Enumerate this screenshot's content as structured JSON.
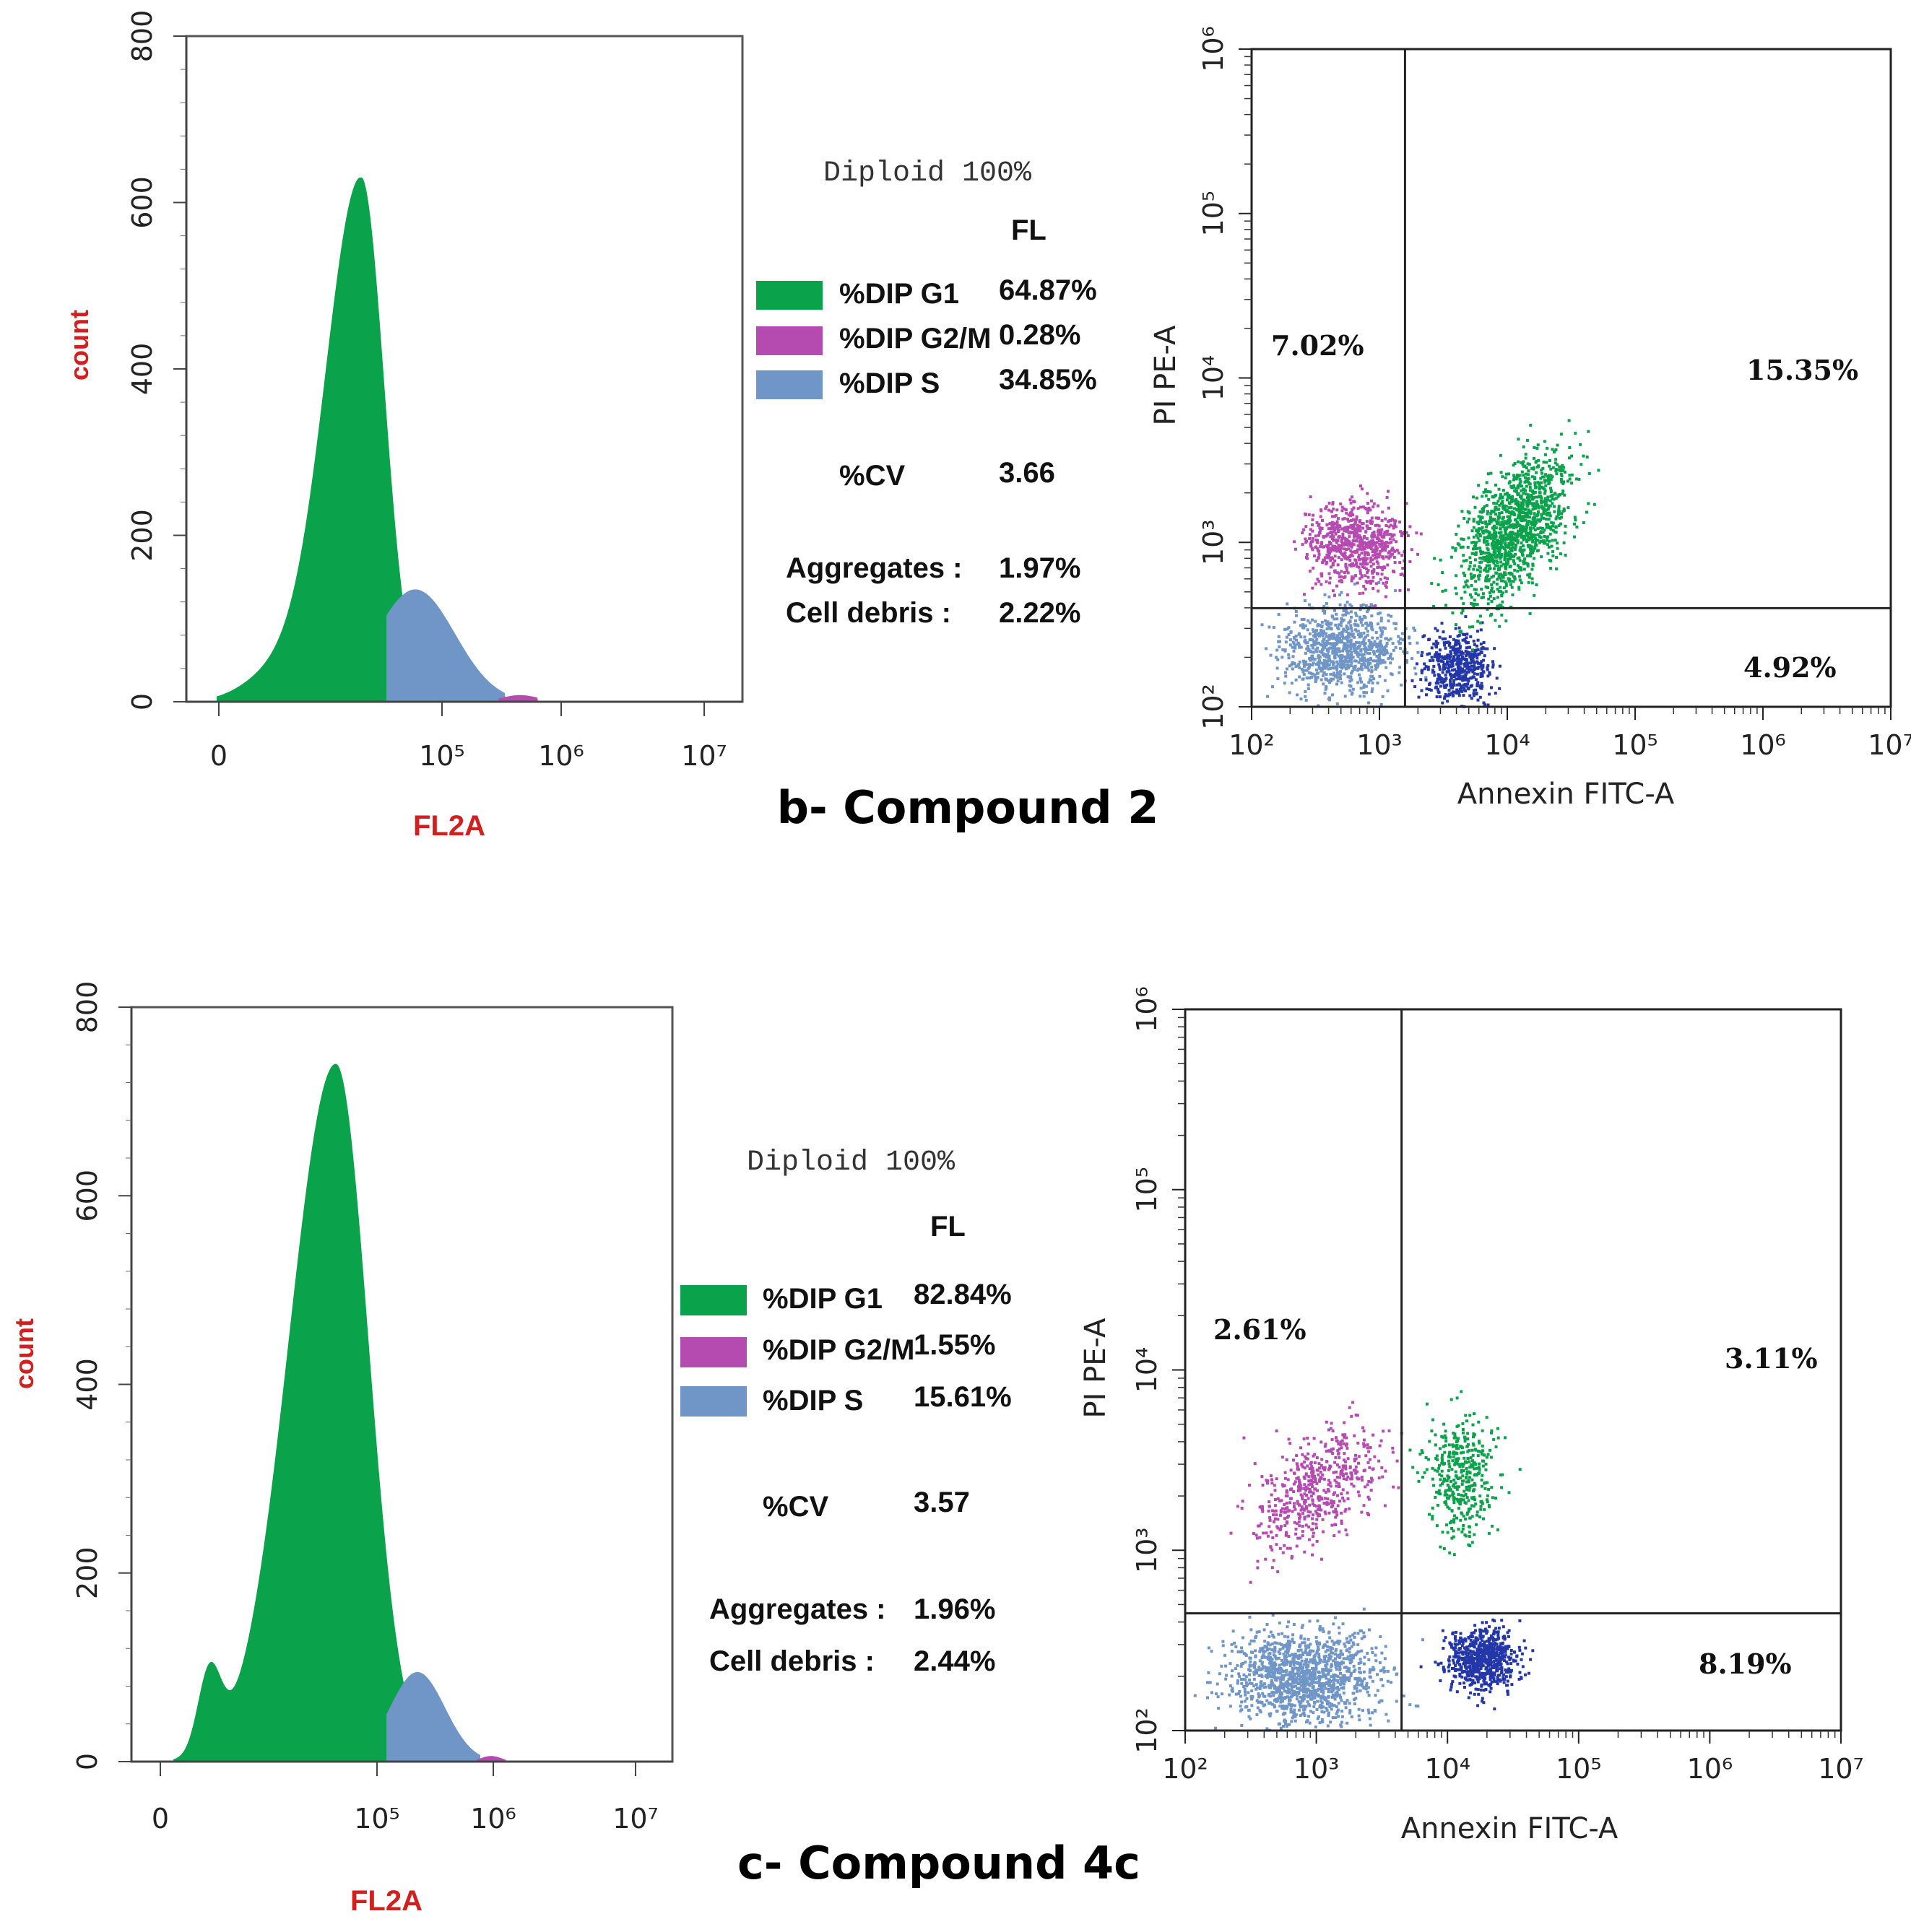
{
  "colors": {
    "g1": "#0aa24a",
    "g2m": "#b54bb0",
    "s": "#6f96c6",
    "axis_label_red": "#d21f1f",
    "dot_debris": "#6f96c6",
    "dot_early": "#2437a8"
  },
  "chart_data": [
    {
      "id": "hist_b",
      "type": "area",
      "title": "",
      "xlabel": "FL2A",
      "ylabel": "count",
      "ylim": [
        0,
        800
      ],
      "y_ticks": [
        "0",
        "200",
        "400",
        "600",
        "800"
      ],
      "x_ticks": [
        "0",
        "10⁵",
        "10⁶",
        "10⁷"
      ],
      "series": [
        {
          "name": "%DIP G1",
          "peak_count": 630
        },
        {
          "name": "%DIP S",
          "peak_count": 135
        },
        {
          "name": "%DIP G2/M",
          "peak_count": 8
        }
      ]
    },
    {
      "id": "scatter_b",
      "type": "scatter",
      "xlabel": "Annexin FITC-A",
      "ylabel": "PI PE-A",
      "x_ticks": [
        "10²",
        "10³",
        "10⁴",
        "10⁵",
        "10⁶",
        "10⁷"
      ],
      "y_ticks": [
        "10²",
        "10³",
        "10⁴",
        "10⁵",
        "10⁶"
      ],
      "gate_x_log10": 3.2,
      "gate_y_log10": 2.6,
      "quadrants": {
        "upper_left": "7.02%",
        "upper_right": "15.35%",
        "lower_right": "4.92%"
      }
    },
    {
      "id": "hist_c",
      "type": "area",
      "title": "",
      "xlabel": "FL2A",
      "ylabel": "count",
      "ylim": [
        0,
        800
      ],
      "y_ticks": [
        "0",
        "200",
        "400",
        "600",
        "800"
      ],
      "x_ticks": [
        "0",
        "10⁵",
        "10⁶",
        "10⁷"
      ],
      "series": [
        {
          "name": "%DIP G1",
          "peak_count": 740
        },
        {
          "name": "%DIP S",
          "peak_count": 95
        },
        {
          "name": "%DIP G2/M",
          "peak_count": 6
        }
      ]
    },
    {
      "id": "scatter_c",
      "type": "scatter",
      "xlabel": "Annexin FITC-A",
      "ylabel": "PI PE-A",
      "x_ticks": [
        "10²",
        "10³",
        "10⁴",
        "10⁵",
        "10⁶",
        "10⁷"
      ],
      "y_ticks": [
        "10²",
        "10³",
        "10⁴",
        "10⁵",
        "10⁶"
      ],
      "gate_x_log10": 3.65,
      "gate_y_log10": 2.65,
      "quadrants": {
        "upper_left": "2.61%",
        "upper_right": "3.11%",
        "lower_right": "8.19%"
      }
    }
  ],
  "panel_b": {
    "caption": "b- Compound 2",
    "legend": {
      "title": "Diploid 100%",
      "column_header": "FL",
      "rows": [
        {
          "label": "%DIP G1",
          "value": "64.87%"
        },
        {
          "label": "%DIP G2/M",
          "value": "0.28%"
        },
        {
          "label": "%DIP S",
          "value": "34.85%"
        }
      ],
      "cv_label": "%CV",
      "cv_value": "3.66",
      "aggregates_label": "Aggregates :",
      "aggregates_value": "1.97%",
      "debris_label": "Cell debris :",
      "debris_value": "2.22%"
    }
  },
  "panel_c": {
    "caption": "c- Compound 4c",
    "legend": {
      "title": "Diploid 100%",
      "column_header": "FL",
      "rows": [
        {
          "label": "%DIP G1",
          "value": "82.84%"
        },
        {
          "label": "%DIP G2/M",
          "value": "1.55%"
        },
        {
          "label": "%DIP S",
          "value": "15.61%"
        }
      ],
      "cv_label": "%CV",
      "cv_value": "3.57",
      "aggregates_label": "Aggregates :",
      "aggregates_value": "1.96%",
      "debris_label": "Cell debris :",
      "debris_value": "2.44%"
    }
  }
}
